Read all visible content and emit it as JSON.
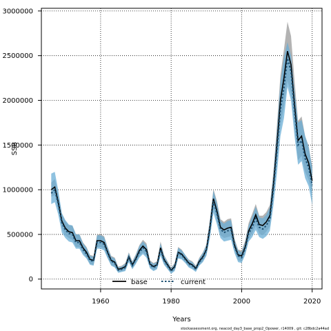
{
  "chart_data": {
    "type": "area",
    "xlabel": "Years",
    "ylabel": "SSB",
    "xlim": [
      1943.2,
      2022.8
    ],
    "ylim": [
      -110000,
      3030000
    ],
    "x_ticks": [
      1960,
      1980,
      2000,
      2020
    ],
    "y_ticks": [
      0,
      500000,
      1000000,
      1500000,
      2000000,
      2500000,
      3000000
    ],
    "y_tick_labels": [
      "0",
      "500000",
      "1000000",
      "1500000",
      "2000000",
      "2500000",
      "3000000"
    ],
    "grid": true,
    "legend_position": "bottom-center",
    "footer": "stockassessment.org, neacod_day3_base_prop2_Opower, r14009 , git: c28bdc2a44ad",
    "series": [
      {
        "name": "base",
        "color": "#000000",
        "band_color": "#a6a6a6",
        "x": [
          1946,
          1947,
          1948,
          1949,
          1950,
          1951,
          1952,
          1953,
          1954,
          1955,
          1956,
          1957,
          1958,
          1959,
          1960,
          1961,
          1962,
          1963,
          1964,
          1965,
          1966,
          1967,
          1968,
          1969,
          1970,
          1971,
          1972,
          1973,
          1974,
          1975,
          1976,
          1977,
          1978,
          1979,
          1980,
          1981,
          1982,
          1983,
          1984,
          1985,
          1986,
          1987,
          1988,
          1989,
          1990,
          1991,
          1992,
          1993,
          1994,
          1995,
          1996,
          1997,
          1998,
          1999,
          2000,
          2001,
          2002,
          2003,
          2004,
          2005,
          2006,
          2007,
          2008,
          2009,
          2010,
          2011,
          2012,
          2013,
          2014,
          2015,
          2016,
          2017,
          2018,
          2019,
          2020
        ],
        "values": [
          1000000,
          1030000,
          860000,
          650000,
          570000,
          530000,
          520000,
          430000,
          430000,
          350000,
          300000,
          220000,
          210000,
          430000,
          430000,
          410000,
          300000,
          210000,
          190000,
          110000,
          120000,
          140000,
          250000,
          160000,
          230000,
          320000,
          370000,
          330000,
          170000,
          140000,
          160000,
          350000,
          220000,
          160000,
          100000,
          140000,
          300000,
          280000,
          230000,
          180000,
          160000,
          120000,
          200000,
          250000,
          330000,
          580000,
          900000,
          760000,
          580000,
          550000,
          570000,
          580000,
          380000,
          270000,
          260000,
          360000,
          540000,
          620000,
          720000,
          610000,
          600000,
          640000,
          710000,
          1050000,
          1500000,
          2000000,
          2250000,
          2550000,
          2400000,
          1950000,
          1550000,
          1600000,
          1400000,
          1300000,
          1100000
        ],
        "lower": [
          920000,
          940000,
          770000,
          570000,
          490000,
          460000,
          440000,
          360000,
          360000,
          290000,
          240000,
          170000,
          160000,
          360000,
          360000,
          340000,
          240000,
          160000,
          140000,
          80000,
          90000,
          100000,
          200000,
          120000,
          180000,
          260000,
          300000,
          260000,
          130000,
          100000,
          120000,
          280000,
          170000,
          120000,
          70000,
          100000,
          240000,
          230000,
          190000,
          140000,
          120000,
          90000,
          160000,
          200000,
          270000,
          490000,
          790000,
          650000,
          490000,
          460000,
          470000,
          480000,
          310000,
          210000,
          200000,
          290000,
          450000,
          510000,
          600000,
          510000,
          490000,
          530000,
          590000,
          900000,
          1280000,
          1720000,
          1930000,
          2220000,
          2080000,
          1680000,
          1330000,
          1380000,
          1200000,
          1110000,
          940000
        ],
        "upper": [
          1080000,
          1120000,
          950000,
          730000,
          650000,
          600000,
          600000,
          500000,
          500000,
          410000,
          360000,
          270000,
          260000,
          500000,
          500000,
          480000,
          360000,
          260000,
          240000,
          140000,
          150000,
          180000,
          300000,
          200000,
          280000,
          380000,
          440000,
          400000,
          210000,
          180000,
          200000,
          420000,
          270000,
          200000,
          130000,
          180000,
          360000,
          330000,
          270000,
          220000,
          200000,
          150000,
          240000,
          300000,
          390000,
          670000,
          1010000,
          870000,
          670000,
          640000,
          670000,
          680000,
          450000,
          330000,
          320000,
          430000,
          630000,
          730000,
          840000,
          710000,
          710000,
          750000,
          830000,
          1200000,
          1720000,
          2280000,
          2570000,
          2880000,
          2720000,
          2220000,
          1770000,
          1820000,
          1600000,
          1490000,
          1260000
        ]
      },
      {
        "name": "current",
        "color": "#1b4f72",
        "band_color": "#6aaed6",
        "x": [
          1946,
          1947,
          1948,
          1949,
          1950,
          1951,
          1952,
          1953,
          1954,
          1955,
          1956,
          1957,
          1958,
          1959,
          1960,
          1961,
          1962,
          1963,
          1964,
          1965,
          1966,
          1967,
          1968,
          1969,
          1970,
          1971,
          1972,
          1973,
          1974,
          1975,
          1976,
          1977,
          1978,
          1979,
          1980,
          1981,
          1982,
          1983,
          1984,
          1985,
          1986,
          1987,
          1988,
          1989,
          1990,
          1991,
          1992,
          1993,
          1994,
          1995,
          1996,
          1997,
          1998,
          1999,
          2000,
          2001,
          2002,
          2003,
          2004,
          2005,
          2006,
          2007,
          2008,
          2009,
          2010,
          2011,
          2012,
          2013,
          2014,
          2015,
          2016,
          2017,
          2018,
          2019,
          2020
        ],
        "values": [
          960000,
          1000000,
          840000,
          630000,
          550000,
          510000,
          500000,
          410000,
          410000,
          330000,
          280000,
          210000,
          200000,
          410000,
          410000,
          390000,
          290000,
          200000,
          180000,
          100000,
          110000,
          130000,
          240000,
          150000,
          220000,
          300000,
          350000,
          310000,
          160000,
          130000,
          150000,
          330000,
          210000,
          150000,
          90000,
          130000,
          290000,
          270000,
          220000,
          170000,
          150000,
          110000,
          190000,
          240000,
          320000,
          560000,
          870000,
          730000,
          560000,
          520000,
          540000,
          550000,
          360000,
          260000,
          240000,
          340000,
          510000,
          580000,
          680000,
          580000,
          560000,
          600000,
          670000,
          1000000,
          1430000,
          1900000,
          2140000,
          2470000,
          2320000,
          1880000,
          1500000,
          1550000,
          1350000,
          1250000,
          1050000
        ],
        "lower": [
          840000,
          860000,
          720000,
          520000,
          460000,
          420000,
          410000,
          340000,
          340000,
          270000,
          230000,
          160000,
          150000,
          340000,
          340000,
          320000,
          230000,
          150000,
          130000,
          70000,
          80000,
          90000,
          190000,
          110000,
          170000,
          240000,
          280000,
          240000,
          120000,
          90000,
          110000,
          260000,
          160000,
          110000,
          60000,
          90000,
          230000,
          220000,
          180000,
          130000,
          110000,
          80000,
          150000,
          190000,
          260000,
          460000,
          740000,
          610000,
          460000,
          420000,
          430000,
          440000,
          290000,
          190000,
          180000,
          270000,
          420000,
          470000,
          550000,
          470000,
          450000,
          480000,
          540000,
          820000,
          1180000,
          1600000,
          1800000,
          2150000,
          2000000,
          1600000,
          1280000,
          1320000,
          1130000,
          1040000,
          830000
        ],
        "upper": [
          1180000,
          1200000,
          990000,
          740000,
          660000,
          610000,
          600000,
          500000,
          500000,
          400000,
          350000,
          260000,
          250000,
          490000,
          490000,
          470000,
          350000,
          250000,
          230000,
          130000,
          140000,
          170000,
          290000,
          190000,
          270000,
          370000,
          420000,
          380000,
          200000,
          170000,
          190000,
          400000,
          260000,
          190000,
          120000,
          170000,
          350000,
          320000,
          270000,
          210000,
          190000,
          140000,
          230000,
          290000,
          380000,
          650000,
          990000,
          850000,
          650000,
          620000,
          650000,
          660000,
          430000,
          320000,
          300000,
          410000,
          600000,
          700000,
          810000,
          690000,
          680000,
          720000,
          800000,
          1160000,
          1650000,
          2200000,
          2480000,
          2650000,
          2500000,
          2100000,
          1750000,
          1780000,
          1600000,
          1480000,
          1250000
        ]
      }
    ]
  }
}
